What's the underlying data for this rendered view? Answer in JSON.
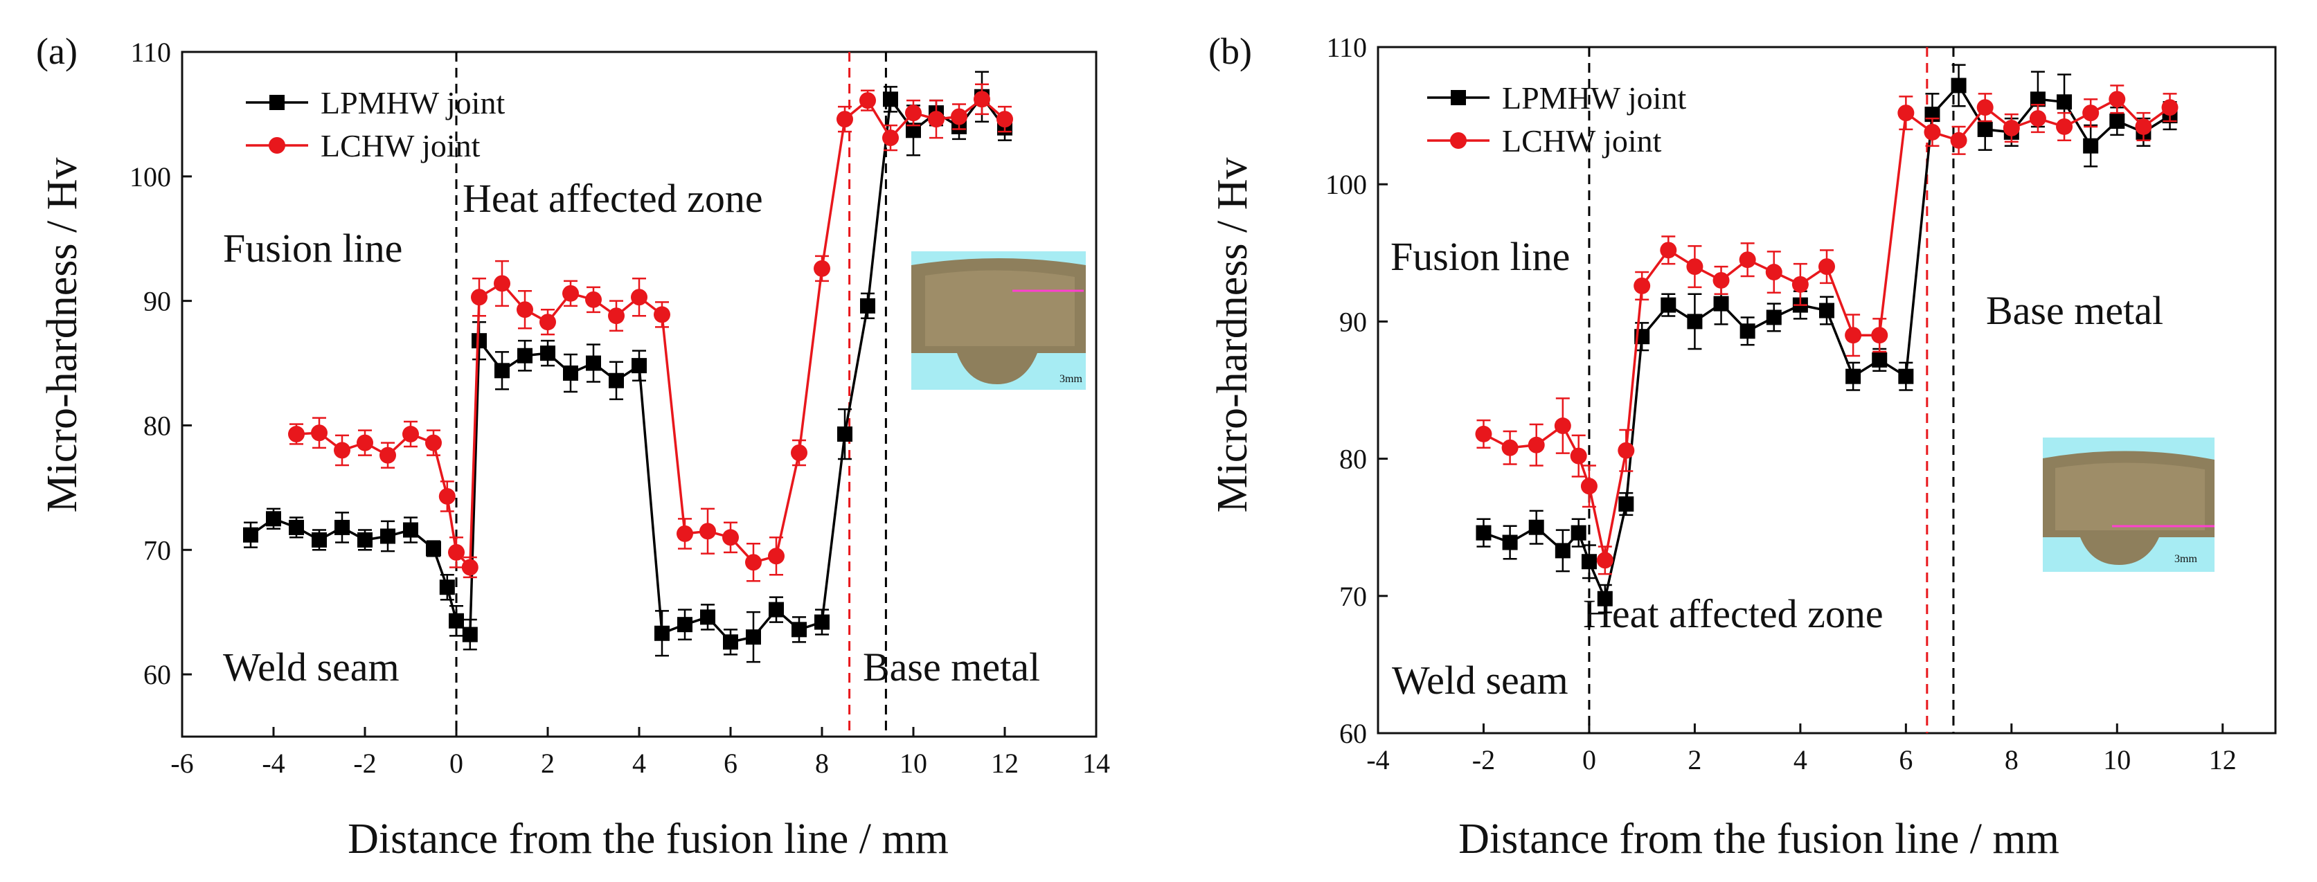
{
  "chart_data": [
    {
      "type": "line",
      "panel_label": "(a)",
      "xlabel": "Distance from the fusion line / mm",
      "ylabel": "Micro-hardness / Hv",
      "xlim": [
        -6,
        14
      ],
      "ylim": [
        55,
        110
      ],
      "xticks": [
        -6,
        -4,
        -2,
        0,
        2,
        4,
        6,
        8,
        10,
        12,
        14
      ],
      "yticks": [
        60,
        70,
        80,
        90,
        100,
        110
      ],
      "grid": false,
      "legend_position": "top-left",
      "series": [
        {
          "name": "LPMHW joint",
          "color": "#000000",
          "marker": "square",
          "x": [
            -4.5,
            -4,
            -3.5,
            -3,
            -2.5,
            -2,
            -1.5,
            -1,
            -0.5,
            -0.2,
            0,
            0.3,
            0.5,
            1,
            1.5,
            2,
            2.5,
            3,
            3.5,
            4,
            4.5,
            5,
            5.5,
            6,
            6.5,
            7,
            7.5,
            8,
            8.5,
            9,
            9.5,
            10,
            10.5,
            11,
            11.5,
            12
          ],
          "y": [
            71.2,
            72.5,
            71.8,
            70.8,
            71.8,
            70.8,
            71.1,
            71.6,
            70.1,
            67,
            64.3,
            63.2,
            86.8,
            84.4,
            85.6,
            85.8,
            84.2,
            85,
            83.6,
            84.8,
            63.3,
            64,
            64.6,
            62.6,
            63,
            65.2,
            63.6,
            64.2,
            79.3,
            89.6,
            106.2,
            103.7,
            105.1,
            104,
            106.4,
            103.9
          ],
          "err": [
            1.0,
            0.8,
            0.8,
            0.8,
            1.2,
            0.8,
            1.2,
            1.0,
            0.6,
            1.0,
            1.2,
            1.2,
            1.5,
            1.5,
            1.2,
            1.0,
            1.5,
            1.5,
            1.5,
            1.2,
            1.8,
            1.2,
            1.0,
            1.0,
            2.0,
            1.0,
            1.0,
            1.0,
            2.0,
            1.0,
            1.0,
            2.0,
            1.0,
            1.0,
            2.0,
            1.0
          ]
        },
        {
          "name": "LCHW joint",
          "color": "#e8171c",
          "marker": "circle",
          "x": [
            -3.5,
            -3,
            -2.5,
            -2,
            -1.5,
            -1,
            -0.5,
            -0.2,
            0,
            0.3,
            0.5,
            1,
            1.5,
            2,
            2.5,
            3,
            3.5,
            4,
            4.5,
            5,
            5.5,
            6,
            6.5,
            7,
            7.5,
            8,
            8.5,
            9,
            9.5,
            10,
            10.5,
            11,
            11.5,
            12
          ],
          "y": [
            79.3,
            79.4,
            78,
            78.6,
            77.6,
            79.3,
            78.6,
            74.3,
            69.8,
            68.6,
            90.3,
            91.4,
            89.3,
            88.3,
            90.6,
            90.1,
            88.8,
            90.3,
            88.9,
            71.3,
            71.5,
            71,
            69,
            69.5,
            77.8,
            92.6,
            104.6,
            106.1,
            103.1,
            105.1,
            104.6,
            104.8,
            106.2,
            104.6
          ],
          "err": [
            0.8,
            1.2,
            1.2,
            1.0,
            1.0,
            1.0,
            1.0,
            1.2,
            1.2,
            0.8,
            1.5,
            1.8,
            1.5,
            1.0,
            1.0,
            1.0,
            1.2,
            1.5,
            1.0,
            1.2,
            1.8,
            1.2,
            1.5,
            1.5,
            1.0,
            1.0,
            1.0,
            0.8,
            1.0,
            1.0,
            1.5,
            1.0,
            1.2,
            1.0
          ]
        }
      ],
      "vlines": [
        {
          "x": 0,
          "color": "#000000"
        },
        {
          "x": 8.6,
          "color": "#e8171c"
        },
        {
          "x": 9.4,
          "color": "#000000"
        }
      ],
      "annotations": [
        "Fusion line",
        "Heat affected zone",
        "Weld seam",
        "Base metal"
      ],
      "inset_scale_label": "3mm"
    },
    {
      "type": "line",
      "panel_label": "(b)",
      "xlabel": "Distance from the fusion line / mm",
      "ylabel": "Micro-hardness / Hv",
      "xlim": [
        -4,
        13
      ],
      "ylim": [
        60,
        110
      ],
      "xticks": [
        -4,
        -2,
        0,
        2,
        4,
        6,
        8,
        10,
        12
      ],
      "yticks": [
        60,
        70,
        80,
        90,
        100,
        110
      ],
      "grid": false,
      "legend_position": "top-left",
      "series": [
        {
          "name": "LPMHW joint",
          "color": "#000000",
          "marker": "square",
          "x": [
            -2,
            -1.5,
            -1,
            -0.5,
            -0.2,
            0,
            0.3,
            0.7,
            1,
            1.5,
            2,
            2.5,
            3,
            3.5,
            4,
            4.5,
            5,
            5.5,
            6,
            6.5,
            7,
            7.5,
            8,
            8.5,
            9,
            9.5,
            10,
            10.5,
            11
          ],
          "y": [
            74.6,
            73.9,
            75,
            73.3,
            74.6,
            72.5,
            69.8,
            76.7,
            88.9,
            91.2,
            90,
            91.3,
            89.3,
            90.3,
            91.2,
            90.8,
            86,
            87.2,
            86,
            105.1,
            107.2,
            104,
            103.8,
            106.2,
            106,
            102.8,
            104.6,
            103.8,
            105
          ],
          "err": [
            1.0,
            1.2,
            1.2,
            1.5,
            1.0,
            1.2,
            1.0,
            0.8,
            1.0,
            0.8,
            2.0,
            1.5,
            1.0,
            1.0,
            1.0,
            1.0,
            1.0,
            0.8,
            1.0,
            1.5,
            1.5,
            1.5,
            1.0,
            2.0,
            2.0,
            1.5,
            1.0,
            1.0,
            1.0
          ]
        },
        {
          "name": "LCHW joint",
          "color": "#e8171c",
          "marker": "circle",
          "x": [
            -2,
            -1.5,
            -1,
            -0.5,
            -0.2,
            0,
            0.3,
            0.7,
            1,
            1.5,
            2,
            2.5,
            3,
            3.5,
            4,
            4.5,
            5,
            5.5,
            6,
            6.5,
            7,
            7.5,
            8,
            8.5,
            9,
            9.5,
            10,
            10.5,
            11
          ],
          "y": [
            81.8,
            80.8,
            81,
            82.4,
            80.2,
            78,
            72.6,
            80.6,
            92.6,
            95.2,
            94,
            93,
            94.5,
            93.6,
            92.7,
            94,
            89,
            89,
            105.2,
            103.8,
            103.2,
            105.6,
            104.1,
            104.8,
            104.2,
            105.2,
            106.2,
            104.2,
            105.6
          ],
          "err": [
            1.0,
            1.2,
            1.5,
            2.0,
            1.5,
            1.5,
            1.0,
            1.5,
            1.0,
            1.0,
            1.5,
            1.0,
            1.2,
            1.5,
            1.5,
            1.2,
            1.5,
            1.2,
            1.2,
            1.0,
            1.0,
            1.0,
            1.0,
            1.0,
            1.0,
            1.0,
            1.0,
            1.0,
            1.0
          ]
        }
      ],
      "vlines": [
        {
          "x": 0,
          "color": "#000000"
        },
        {
          "x": 6.4,
          "color": "#e8171c"
        },
        {
          "x": 6.9,
          "color": "#000000"
        }
      ],
      "annotations": [
        "Fusion line",
        "Base metal",
        "Heat affected zone",
        "Weld seam"
      ],
      "inset_scale_label": "3mm"
    }
  ]
}
